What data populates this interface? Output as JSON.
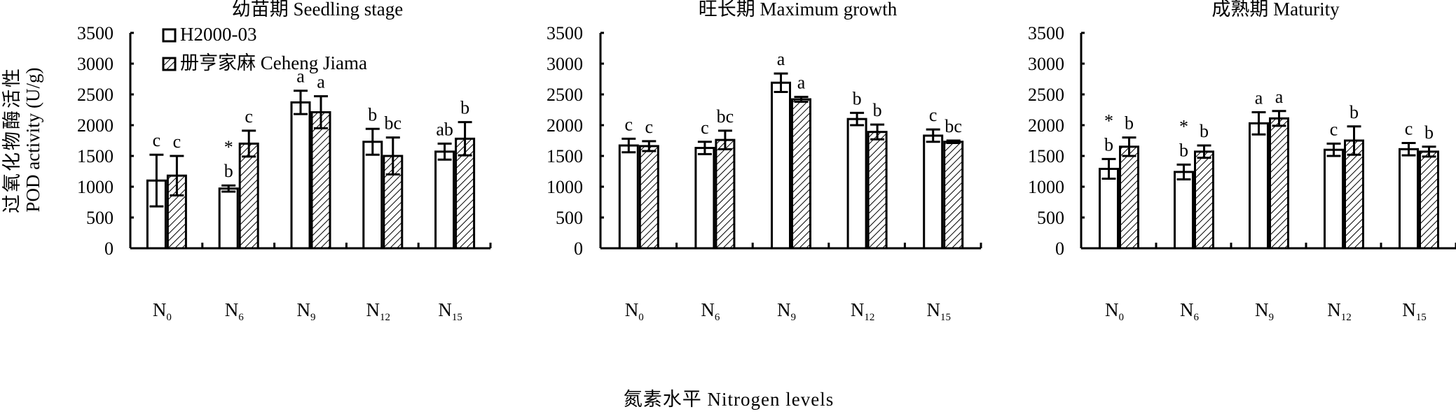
{
  "chart_data": {
    "type": "bar",
    "ylabel_cn": "过氧化物酶活性",
    "ylabel": "POD activity (U/g)",
    "xlabel": "氮素水平 Nitrogen levels",
    "ylim": [
      0,
      3500
    ],
    "yticks": [
      "0",
      "500",
      "1000",
      "1500",
      "2000",
      "2500",
      "3000",
      "3500"
    ],
    "categories": [
      "N0",
      "N6",
      "N9",
      "N12",
      "N15"
    ],
    "category_labels": [
      {
        "main": "N",
        "sub": "0"
      },
      {
        "main": "N",
        "sub": "6"
      },
      {
        "main": "N",
        "sub": "9"
      },
      {
        "main": "N",
        "sub": "12"
      },
      {
        "main": "N",
        "sub": "15"
      }
    ],
    "legend": [
      "H2000-03",
      "册亨家麻 Ceheng Jiama"
    ],
    "legend_placement": "top-left of first panel",
    "panels": [
      {
        "title": "幼苗期 Seedling stage",
        "series": [
          {
            "name": "H2000-03",
            "values": [
              1100,
              970,
              2370,
              1730,
              1570
            ],
            "errors": [
              420,
              50,
              190,
              210,
              130
            ],
            "letters": [
              "c",
              "b",
              "a",
              "b",
              "ab"
            ],
            "stars": [
              false,
              true,
              false,
              false,
              false
            ]
          },
          {
            "name": "册亨家麻 Ceheng Jiama",
            "values": [
              1180,
              1700,
              2210,
              1500,
              1780
            ],
            "errors": [
              320,
              210,
              260,
              300,
              270
            ],
            "letters": [
              "c",
              "c",
              "a",
              "bc",
              "b"
            ],
            "stars": [
              false,
              false,
              false,
              false,
              false
            ]
          }
        ]
      },
      {
        "title": "旺长期 Maximum growth",
        "series": [
          {
            "name": "H2000-03",
            "values": [
              1670,
              1630,
              2690,
              2100,
              1830
            ],
            "errors": [
              110,
              100,
              150,
              100,
              100
            ],
            "letters": [
              "c",
              "c",
              "a",
              "b",
              "c"
            ],
            "stars": [
              false,
              false,
              false,
              false,
              false
            ]
          },
          {
            "name": "册亨家麻 Ceheng Jiama",
            "values": [
              1660,
              1760,
              2420,
              1890,
              1730
            ],
            "errors": [
              80,
              150,
              40,
              120,
              20
            ],
            "letters": [
              "c",
              "bc",
              "a",
              "b",
              "bc"
            ],
            "stars": [
              false,
              false,
              false,
              false,
              false
            ]
          }
        ]
      },
      {
        "title": "成熟期 Maturity",
        "series": [
          {
            "name": "H2000-03",
            "values": [
              1290,
              1240,
              2030,
              1600,
              1610
            ],
            "errors": [
              160,
              120,
              180,
              100,
              100
            ],
            "letters": [
              "b",
              "b",
              "a",
              "c",
              "c"
            ],
            "stars": [
              true,
              true,
              false,
              false,
              false
            ]
          },
          {
            "name": "册亨家麻 Ceheng Jiama",
            "values": [
              1650,
              1570,
              2110,
              1750,
              1570
            ],
            "errors": [
              150,
              100,
              120,
              230,
              80
            ],
            "letters": [
              "b",
              "b",
              "a",
              "b",
              "b"
            ],
            "stars": [
              false,
              false,
              false,
              false,
              false
            ]
          }
        ]
      }
    ]
  }
}
